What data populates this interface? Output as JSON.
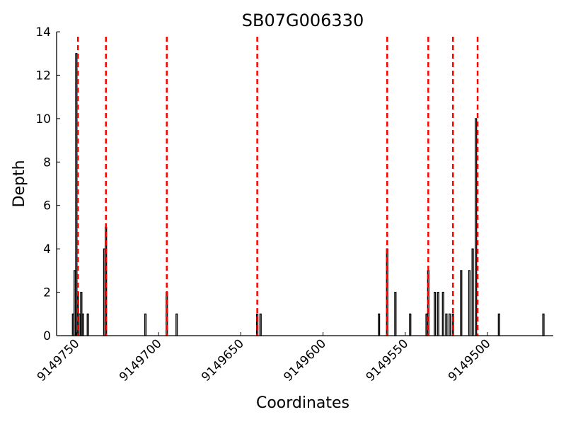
{
  "chart_data": {
    "type": "bar",
    "title": "SB07G006330",
    "xlabel": "Coordinates",
    "ylabel": "Depth",
    "x_reversed": true,
    "xlim": [
      9149762,
      9149460
    ],
    "ylim": [
      0,
      14
    ],
    "xticks": [
      9149750,
      9149700,
      9149650,
      9149600,
      9149550,
      9149500
    ],
    "yticks": [
      0,
      2,
      4,
      6,
      8,
      10,
      12,
      14
    ],
    "bar_color": "#000000",
    "vline_color": "#ff0000",
    "vlines": [
      9149749,
      9149732,
      9149695,
      9149640,
      9149561,
      9149536,
      9149521,
      9149506
    ],
    "bars": [
      {
        "x": 9149752,
        "y": 1
      },
      {
        "x": 9149751,
        "y": 3
      },
      {
        "x": 9149750,
        "y": 13
      },
      {
        "x": 9149749,
        "y": 2
      },
      {
        "x": 9149748,
        "y": 1
      },
      {
        "x": 9149747,
        "y": 2
      },
      {
        "x": 9149746,
        "y": 1
      },
      {
        "x": 9149743,
        "y": 1
      },
      {
        "x": 9149733,
        "y": 4
      },
      {
        "x": 9149732,
        "y": 5
      },
      {
        "x": 9149708,
        "y": 1
      },
      {
        "x": 9149695,
        "y": 2
      },
      {
        "x": 9149689,
        "y": 1
      },
      {
        "x": 9149640,
        "y": 1
      },
      {
        "x": 9149638,
        "y": 1
      },
      {
        "x": 9149566,
        "y": 1
      },
      {
        "x": 9149561,
        "y": 4
      },
      {
        "x": 9149556,
        "y": 2
      },
      {
        "x": 9149547,
        "y": 1
      },
      {
        "x": 9149537,
        "y": 1
      },
      {
        "x": 9149536,
        "y": 3
      },
      {
        "x": 9149532,
        "y": 2
      },
      {
        "x": 9149530,
        "y": 2
      },
      {
        "x": 9149527,
        "y": 2
      },
      {
        "x": 9149525,
        "y": 1
      },
      {
        "x": 9149523,
        "y": 1
      },
      {
        "x": 9149521,
        "y": 1
      },
      {
        "x": 9149516,
        "y": 3
      },
      {
        "x": 9149511,
        "y": 3
      },
      {
        "x": 9149509,
        "y": 4
      },
      {
        "x": 9149507,
        "y": 10
      },
      {
        "x": 9149493,
        "y": 1
      },
      {
        "x": 9149466,
        "y": 1
      }
    ]
  }
}
